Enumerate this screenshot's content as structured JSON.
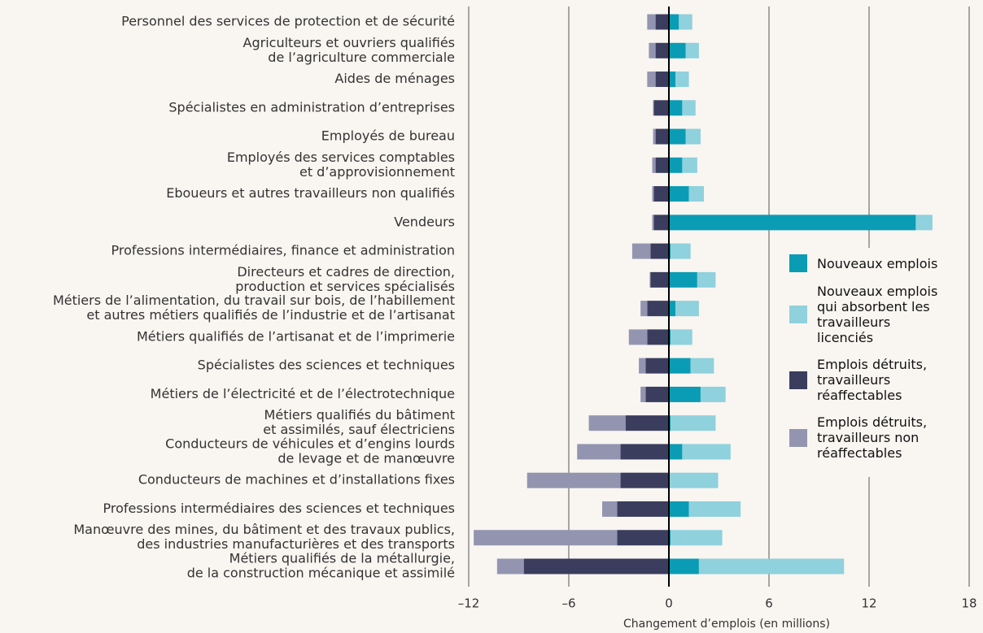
{
  "chart_data": {
    "type": "diverging-stacked-bar",
    "x_label": "Changement d’emplois (en millions)",
    "categories": [
      [
        "Personnel des services de protection et de sécurité"
      ],
      [
        "Agriculteurs et ouvriers qualifiés",
        "de l’agriculture commerciale"
      ],
      [
        "Aides de ménages"
      ],
      [
        "Spécialistes en administration d’entreprises"
      ],
      [
        "Employés de bureau"
      ],
      [
        "Employés des services comptables",
        "et d’approvisionnement"
      ],
      [
        "Eboueurs et autres travailleurs non qualifiés"
      ],
      [
        "Vendeurs"
      ],
      [
        "Professions intermédiaires, finance et administration"
      ],
      [
        "Directeurs et cadres de direction,",
        "production et services spécialisés"
      ],
      [
        "Métiers de l’alimentation, du travail sur bois, de l’habillement",
        "et autres métiers qualifiés de l’industrie et de l’artisanat"
      ],
      [
        "Métiers qualifiés de l’artisanat et de l’imprimerie"
      ],
      [
        "Spécialistes des sciences et techniques"
      ],
      [
        "Métiers de l’électricité et de l’électrotechnique"
      ],
      [
        "Métiers qualifiés du bâtiment",
        "et assimilés, sauf électriciens"
      ],
      [
        "Conducteurs de véhicules et d’engins lourds",
        "de levage et de manœuvre"
      ],
      [
        "Conducteurs de machines et d’installations fixes"
      ],
      [
        "Professions intermédiaires des sciences et techniques"
      ],
      [
        "Manœuvre des mines, du bâtiment et des travaux publics,",
        "des industries manufacturières et des transports"
      ],
      [
        "Métiers qualifiés de la métallurgie,",
        "de la construction mécanique et assimilé"
      ]
    ],
    "series": [
      {
        "name": "Nouveaux emplois",
        "color": "#0a9cb4",
        "values": [
          0.6,
          1.0,
          0.4,
          0.8,
          1.0,
          0.8,
          1.2,
          14.8,
          0.1,
          1.7,
          0.4,
          0.1,
          1.3,
          1.9,
          0.1,
          0.8,
          0.05,
          1.2,
          0.1,
          1.8
        ]
      },
      {
        "name": "Nouveaux emplois qui absorbent les travailleurs licenciés",
        "color": "#8fd1dd",
        "values": [
          0.8,
          0.8,
          0.8,
          0.8,
          0.9,
          0.9,
          0.9,
          1.0,
          1.2,
          1.1,
          1.4,
          1.3,
          1.4,
          1.5,
          2.7,
          2.9,
          2.9,
          3.1,
          3.1,
          8.7
        ]
      },
      {
        "name": "Emplois détruits, travailleurs réaffectables",
        "color": "#3b3d5e",
        "values": [
          -0.8,
          -0.8,
          -0.8,
          -0.9,
          -0.8,
          -0.8,
          -0.9,
          -0.9,
          -1.1,
          -1.1,
          -1.3,
          -1.3,
          -1.4,
          -1.4,
          -2.6,
          -2.9,
          -2.9,
          -3.1,
          -3.1,
          -8.7
        ]
      },
      {
        "name": "Emplois détruits, travailleurs non réaffectables",
        "color": "#9395b0",
        "values": [
          -0.5,
          -0.4,
          -0.5,
          -0.05,
          -0.15,
          -0.2,
          -0.1,
          -0.1,
          -1.1,
          -0.05,
          -0.4,
          -1.1,
          -0.4,
          -0.3,
          -2.2,
          -2.6,
          -5.6,
          -0.9,
          -8.6,
          -1.6
        ]
      }
    ],
    "xlim": [
      -12,
      18
    ],
    "xticks": [
      {
        "value": -12,
        "label": "–12"
      },
      {
        "value": -6,
        "label": "–6"
      },
      0,
      6,
      12,
      18
    ],
    "grid": true
  }
}
